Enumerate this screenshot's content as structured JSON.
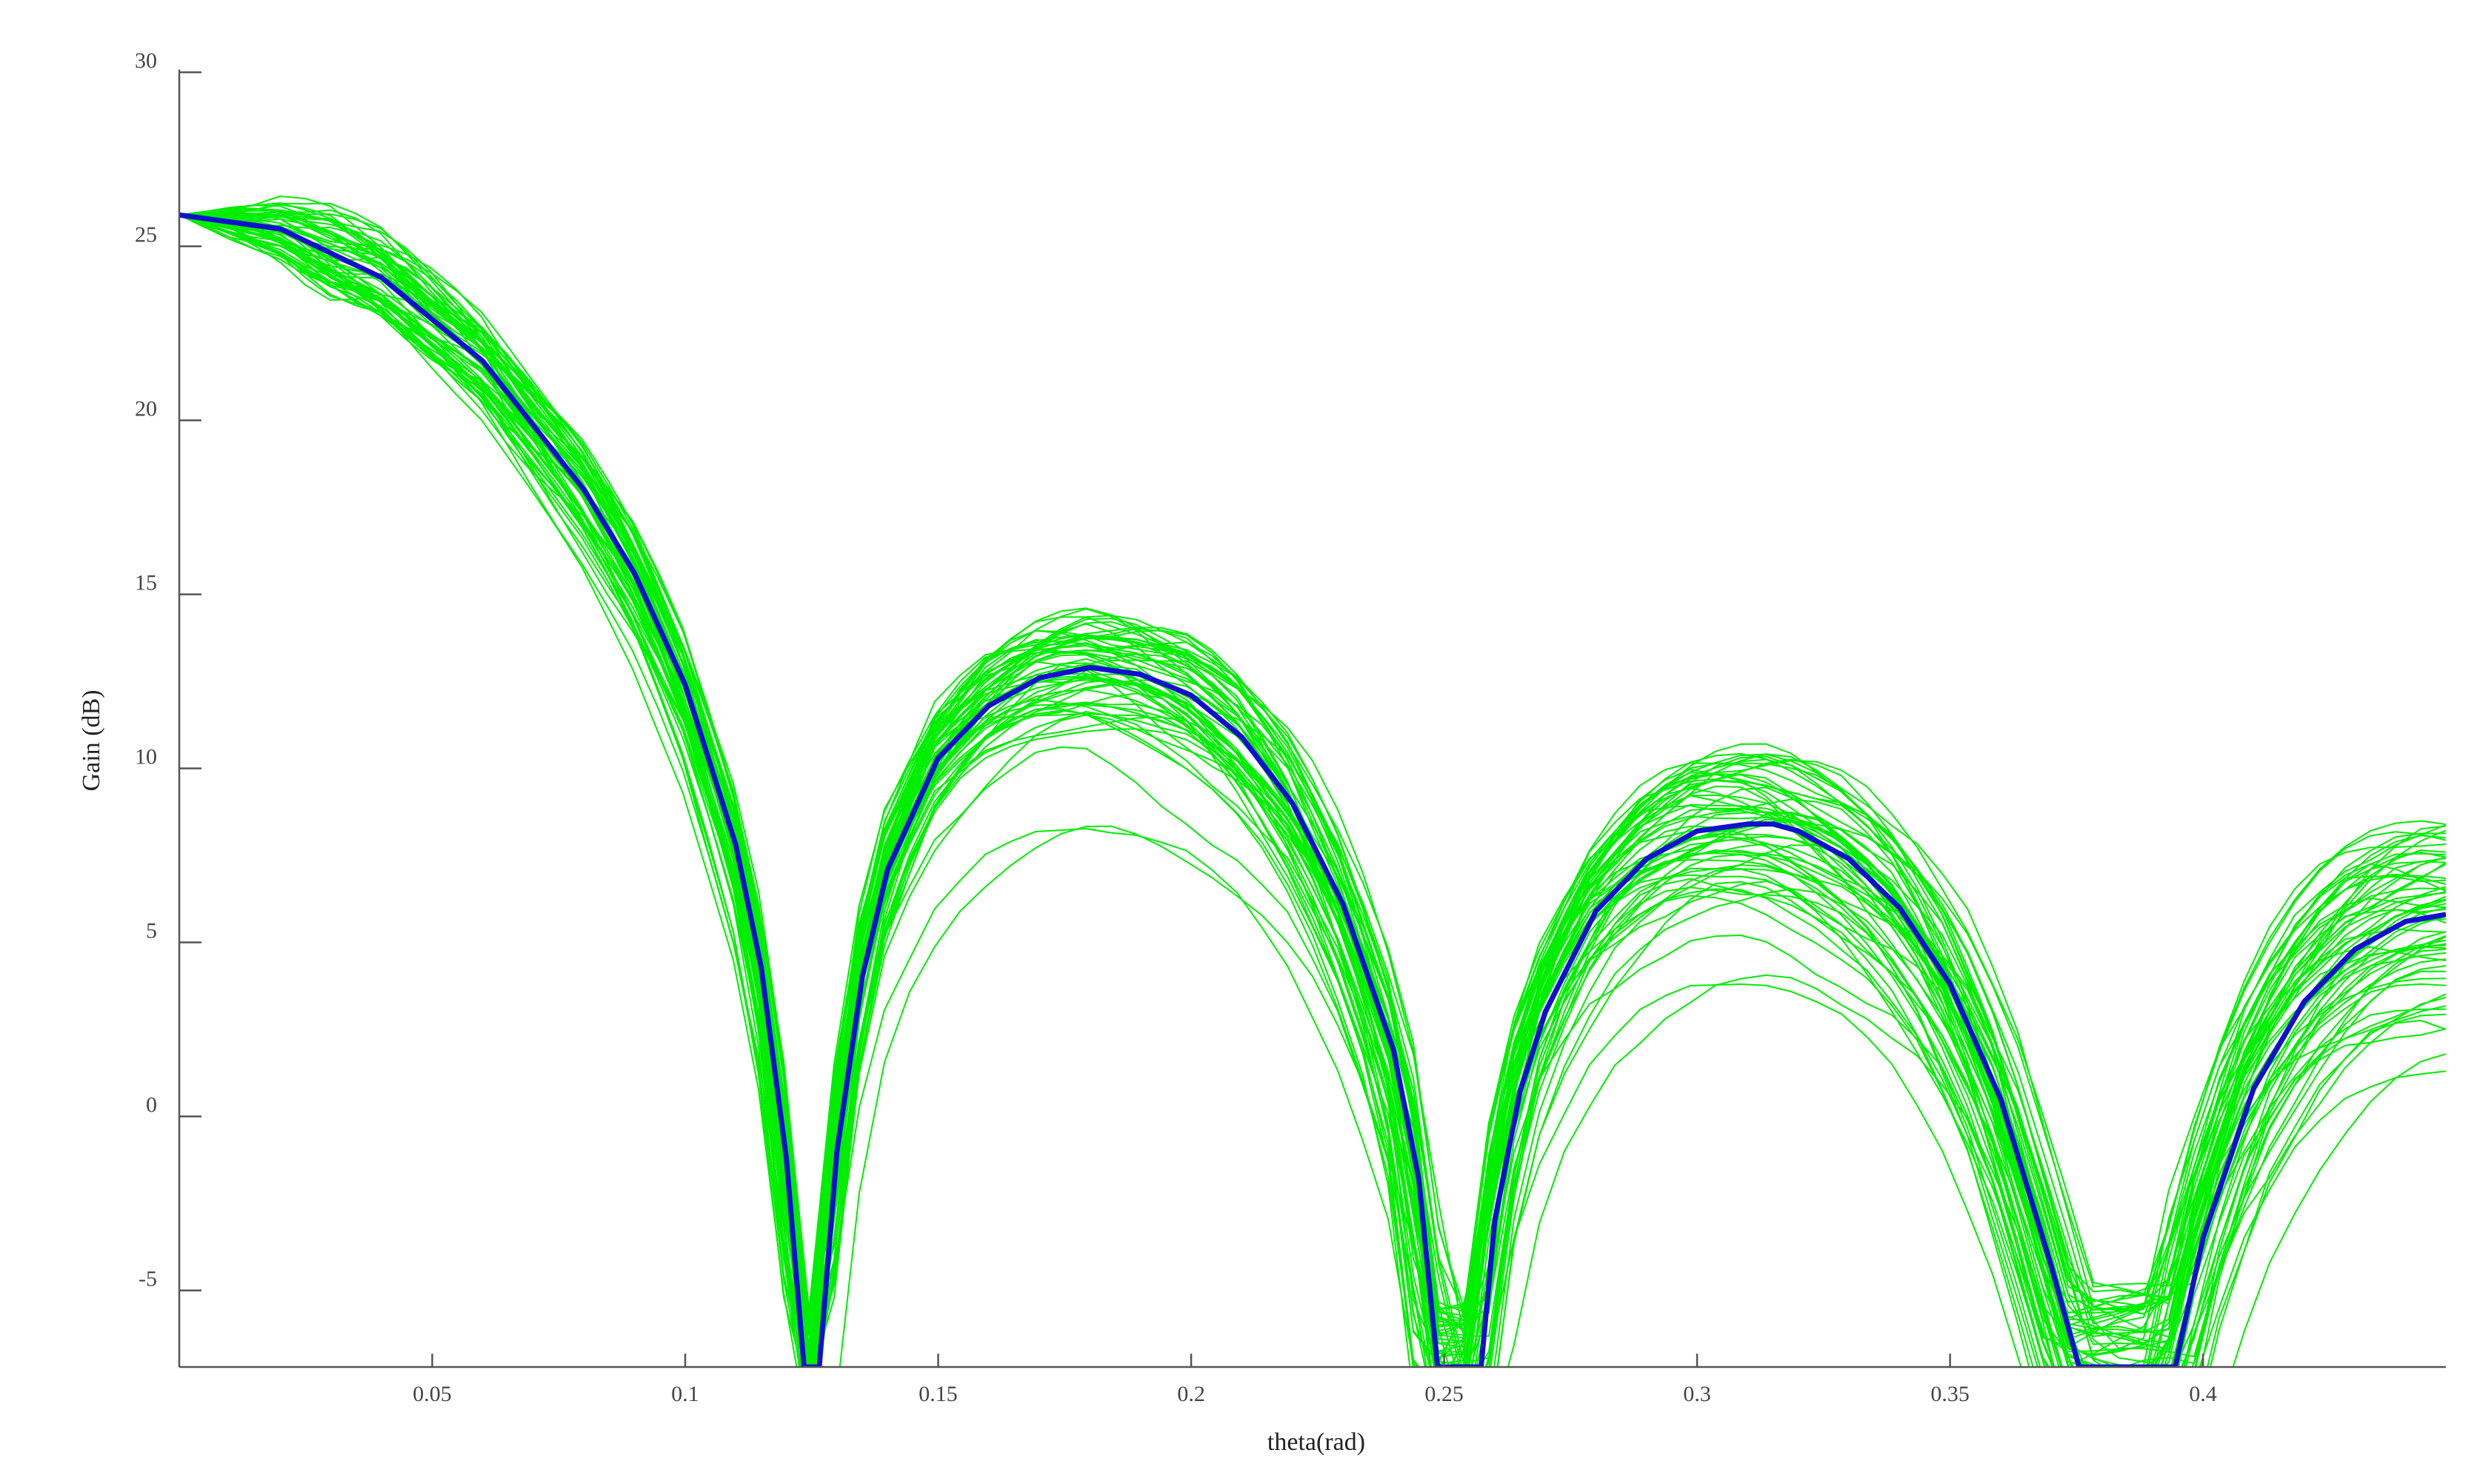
{
  "chart_data": {
    "type": "line",
    "title": "",
    "xlabel": "theta(rad)",
    "ylabel": "Gain (dB)",
    "xlim": [
      0,
      0.448
    ],
    "ylim": [
      -7.2,
      30.8
    ],
    "x_ticks": [
      0.05,
      0.1,
      0.15,
      0.2,
      0.25,
      0.3,
      0.35,
      0.4
    ],
    "x_tick_labels": [
      "0.05",
      "0.1",
      "0.15",
      "0.2",
      "0.25",
      "0.3",
      "0.35",
      "0.4"
    ],
    "y_ticks": [
      -5,
      0,
      5,
      10,
      15,
      20,
      25,
      30
    ],
    "y_tick_labels": [
      "-5",
      "0",
      "5",
      "10",
      "15",
      "20",
      "25",
      "30"
    ],
    "grid": false,
    "legend": "none",
    "series": [
      {
        "style": "nominal",
        "color": "#1010d0",
        "x": [
          0.0,
          0.02,
          0.04,
          0.06,
          0.08,
          0.09,
          0.1,
          0.11,
          0.115,
          0.12,
          0.1235,
          0.1265,
          0.13,
          0.135,
          0.14,
          0.15,
          0.16,
          0.17,
          0.18,
          0.19,
          0.2,
          0.21,
          0.22,
          0.23,
          0.24,
          0.245,
          0.2487,
          0.2573,
          0.26,
          0.265,
          0.27,
          0.28,
          0.29,
          0.3,
          0.31,
          0.315,
          0.32,
          0.33,
          0.34,
          0.35,
          0.36,
          0.37,
          0.3755,
          0.3945,
          0.4,
          0.41,
          0.42,
          0.43,
          0.44,
          0.448
        ],
        "y": [
          25.9,
          25.5,
          24.1,
          21.7,
          18.0,
          15.6,
          12.4,
          7.8,
          4.3,
          -1.2,
          -7.2,
          -7.2,
          -1.0,
          4.0,
          7.1,
          10.3,
          11.8,
          12.6,
          12.9,
          12.7,
          12.1,
          10.9,
          9.0,
          6.1,
          1.9,
          -1.8,
          -7.2,
          -7.2,
          -3.0,
          0.7,
          3.0,
          5.9,
          7.4,
          8.2,
          8.4,
          8.4,
          8.2,
          7.4,
          6.0,
          3.8,
          0.5,
          -4.3,
          -7.2,
          -7.2,
          -3.5,
          0.8,
          3.3,
          4.8,
          5.6,
          5.8
        ]
      }
    ],
    "ensemble": {
      "color": "#00ee00",
      "count": 60
    }
  }
}
